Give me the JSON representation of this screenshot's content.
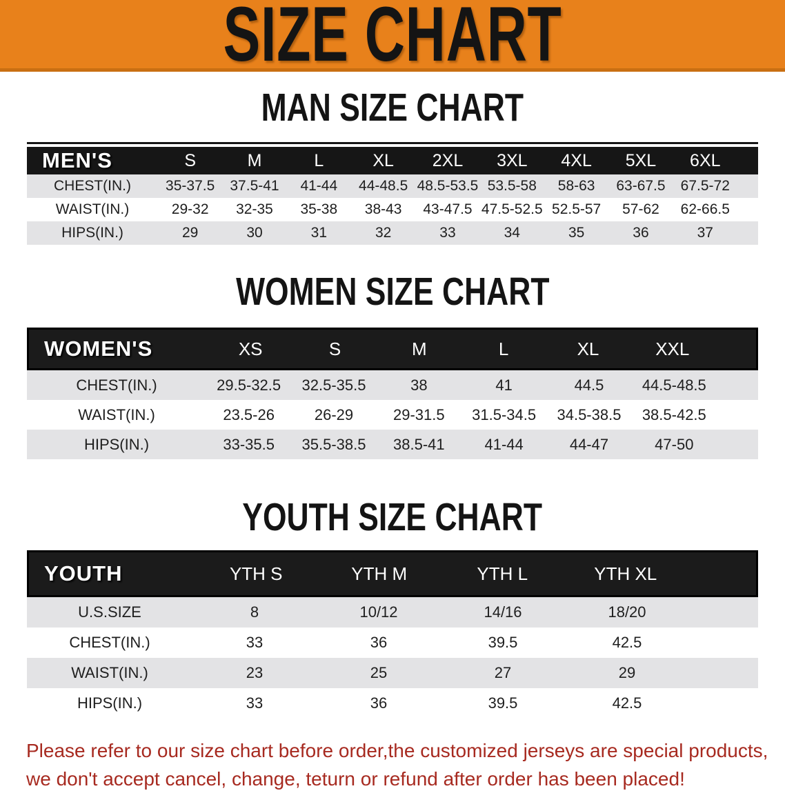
{
  "banner": {
    "title": "SIZE CHART"
  },
  "sections": {
    "man": {
      "heading": "MAN SIZE CHART",
      "table": {
        "corner_label": "MEN'S",
        "columns": [
          "S",
          "M",
          "L",
          "XL",
          "2XL",
          "3XL",
          "4XL",
          "5XL",
          "6XL"
        ],
        "rows": [
          {
            "label": "CHEST(IN.)",
            "values": [
              "35-37.5",
              "37.5-41",
              "41-44",
              "44-48.5",
              "48.5-53.5",
              "53.5-58",
              "58-63",
              "63-67.5",
              "67.5-72"
            ]
          },
          {
            "label": "WAIST(IN.)",
            "values": [
              "29-32",
              "32-35",
              "35-38",
              "38-43",
              "43-47.5",
              "47.5-52.5",
              "52.5-57",
              "57-62",
              "62-66.5"
            ]
          },
          {
            "label": "HIPS(IN.)",
            "values": [
              "29",
              "30",
              "31",
              "32",
              "33",
              "34",
              "35",
              "36",
              "37"
            ]
          }
        ]
      }
    },
    "women": {
      "heading": "WOMEN SIZE CHART",
      "table": {
        "corner_label": "WOMEN'S",
        "columns": [
          "XS",
          "S",
          "M",
          "L",
          "XL",
          "XXL"
        ],
        "rows": [
          {
            "label": "CHEST(IN.)",
            "values": [
              "29.5-32.5",
              "32.5-35.5",
              "38",
              "41",
              "44.5",
              "44.5-48.5"
            ]
          },
          {
            "label": "WAIST(IN.)",
            "values": [
              "23.5-26",
              "26-29",
              "29-31.5",
              "31.5-34.5",
              "34.5-38.5",
              "38.5-42.5"
            ]
          },
          {
            "label": "HIPS(IN.)",
            "values": [
              "33-35.5",
              "35.5-38.5",
              "38.5-41",
              "41-44",
              "44-47",
              "47-50"
            ]
          }
        ]
      }
    },
    "youth": {
      "heading": "YOUTH SIZE CHART",
      "table": {
        "corner_label": "YOUTH",
        "columns": [
          "YTH S",
          "YTH M",
          "YTH L",
          "YTH XL"
        ],
        "rows": [
          {
            "label": "U.S.SIZE",
            "values": [
              "8",
              "10/12",
              "14/16",
              "18/20"
            ]
          },
          {
            "label": "CHEST(IN.)",
            "values": [
              "33",
              "36",
              "39.5",
              "42.5"
            ]
          },
          {
            "label": "WAIST(IN.)",
            "values": [
              "23",
              "25",
              "27",
              "29"
            ]
          },
          {
            "label": "HIPS(IN.)",
            "values": [
              "33",
              "36",
              "39.5",
              "42.5"
            ]
          }
        ]
      }
    }
  },
  "disclaimer": {
    "line1": "Please refer to our size chart before order,the customized jerseys are special products,",
    "line2": "we don't accept cancel, change, teturn or refund after order has been placed!"
  },
  "colors": {
    "banner_bg": "#E8811B",
    "banner_edge": "#C96F12",
    "band_bg": "#161616",
    "stripe_bg": "#E3E3E5",
    "disclaimer_text": "#A72A20"
  }
}
